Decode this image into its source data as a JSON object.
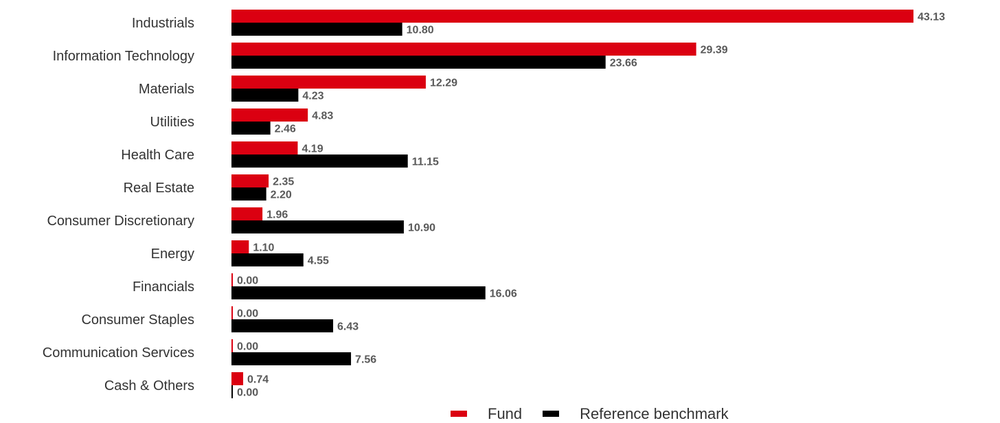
{
  "colors": {
    "fund": "#db0011",
    "benchmark": "#000000",
    "value_text": "#595959",
    "category_text": "#333333"
  },
  "chart_data": {
    "type": "bar",
    "orientation": "horizontal",
    "categories": [
      "Industrials",
      "Information Technology",
      "Materials",
      "Utilities",
      "Health Care",
      "Real Estate",
      "Consumer Discretionary",
      "Energy",
      "Financials",
      "Consumer Staples",
      "Communication Services",
      "Cash & Others"
    ],
    "series": [
      {
        "name": "Fund",
        "color": "#db0011",
        "values": [
          43.13,
          29.39,
          12.29,
          4.83,
          4.19,
          2.35,
          1.96,
          1.1,
          0.0,
          0.0,
          0.0,
          0.74
        ],
        "labels": [
          "43.13",
          "29.39",
          "12.29",
          "4.83",
          "4.19",
          "2.35",
          "1.96",
          "1.10",
          "0.00",
          "0.00",
          "0.00",
          "0.74"
        ]
      },
      {
        "name": "Reference benchmark",
        "color": "#000000",
        "values": [
          10.8,
          23.66,
          4.23,
          2.46,
          11.15,
          2.2,
          10.9,
          4.55,
          16.06,
          6.43,
          7.56,
          0.0
        ],
        "labels": [
          "10.80",
          "23.66",
          "4.23",
          "2.46",
          "11.15",
          "2.20",
          "10.90",
          "4.55",
          "16.06",
          "6.43",
          "7.56",
          "0.00"
        ]
      }
    ],
    "xlim": [
      0,
      43.13
    ],
    "grid": false,
    "legend_position": "bottom-center",
    "data_labels": true
  }
}
